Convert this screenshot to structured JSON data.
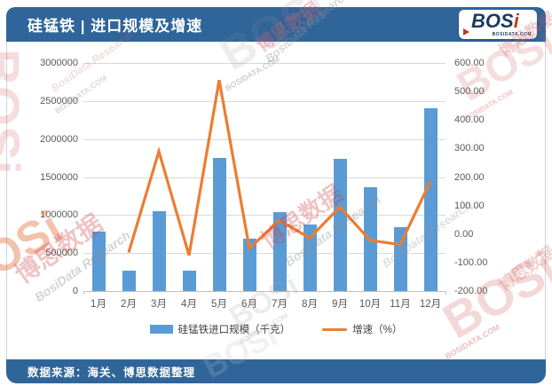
{
  "header": {
    "title": "硅锰铁 | 进口规模及增速"
  },
  "logo": {
    "text_main": "BOS",
    "text_accent": "i",
    "subtext": "BOSIDATA.COM"
  },
  "footer": {
    "source": "数据来源：海关、博思数据整理"
  },
  "legend": {
    "bar_label": "硅锰铁进口规模（千克）",
    "line_label": "增速（%）"
  },
  "watermarks": {
    "brand": "BOSi",
    "brand_cn": "博思数据",
    "research": "BosiData Research",
    "domain": "BOSIDATA.COM"
  },
  "colors": {
    "bar": "#5B9BD5",
    "line": "#ED7D31",
    "header_bg": "#30659A",
    "logo_navy": "#1b3a5e",
    "logo_red": "#c0392b"
  },
  "chart_data": {
    "type": "combo",
    "title": "硅锰铁 | 进口规模及增速",
    "categories": [
      "1月",
      "2月",
      "3月",
      "4月",
      "5月",
      "6月",
      "7月",
      "8月",
      "9月",
      "10月",
      "11月",
      "12月"
    ],
    "series": [
      {
        "name": "硅锰铁进口规模（千克）",
        "type": "bar",
        "y_axis": "left",
        "color": "#5B9BD5",
        "values": [
          780000,
          270000,
          1050000,
          270000,
          1750000,
          690000,
          1040000,
          880000,
          1740000,
          1370000,
          840000,
          2400000
        ]
      },
      {
        "name": "增速（%）",
        "type": "line",
        "y_axis": "right",
        "color": "#ED7D31",
        "values": [
          null,
          -65,
          290,
          -75,
          540,
          -50,
          48,
          -14,
          95,
          -22,
          -37,
          185
        ]
      }
    ],
    "left_axis": {
      "min": 0,
      "max": 3000000,
      "step": 500000,
      "tick_labels": [
        "3000000",
        "2500000",
        "2000000",
        "1500000",
        "1000000",
        "500000",
        "0"
      ]
    },
    "right_axis": {
      "min": -200,
      "max": 600,
      "step": 100,
      "tick_labels": [
        "600.00",
        "500.00",
        "400.00",
        "300.00",
        "200.00",
        "100.00",
        "0.00",
        "-100.00",
        "-200.00"
      ]
    },
    "grid": true,
    "legend_position": "bottom"
  }
}
